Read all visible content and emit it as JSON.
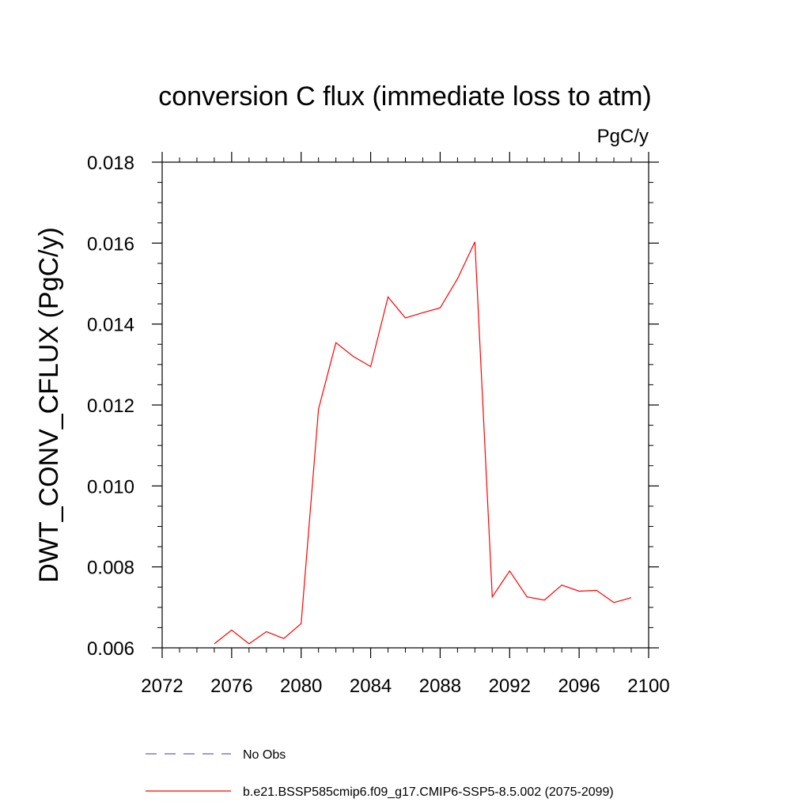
{
  "chart_data": {
    "type": "line",
    "title": "conversion C flux (immediate loss to atm)",
    "units": "PgC/y",
    "ylabel": "DWT_CONV_CFLUX  (PgC/y)",
    "xlabel": "",
    "xlim": [
      2072,
      2100
    ],
    "ylim": [
      0.006,
      0.018
    ],
    "x_ticks": [
      2072,
      2076,
      2080,
      2084,
      2088,
      2092,
      2096,
      2100
    ],
    "x_tick_labels": [
      "2072",
      "2076",
      "2080",
      "2084",
      "2088",
      "2092",
      "2096",
      "2100"
    ],
    "y_ticks": [
      0.006,
      0.008,
      0.01,
      0.012,
      0.014,
      0.016,
      0.018
    ],
    "y_tick_labels": [
      "0.006",
      "0.008",
      "0.010",
      "0.012",
      "0.014",
      "0.016",
      "0.018"
    ],
    "x_minor_step": 1,
    "y_minor_step": 0.0005,
    "grid": false,
    "legend_placement": "bottom",
    "series": [
      {
        "name": "No Obs",
        "color": "#6a5acd",
        "dash": "dashed",
        "x": [],
        "y": []
      },
      {
        "name": "b.e21.BSSP585cmip6.f09_g17.CMIP6-SSP5-8.5.002 (2075-2099)",
        "color": "#ff0000",
        "dash": "solid",
        "x": [
          2075,
          2076,
          2077,
          2078,
          2079,
          2080,
          2081,
          2082,
          2083,
          2084,
          2085,
          2086,
          2087,
          2088,
          2089,
          2090,
          2091,
          2092,
          2093,
          2094,
          2095,
          2096,
          2097,
          2098,
          2099
        ],
        "y": [
          0.0061,
          0.00644,
          0.0061,
          0.0064,
          0.00623,
          0.0066,
          0.0119,
          0.01354,
          0.0132,
          0.01295,
          0.01467,
          0.01415,
          0.01428,
          0.0144,
          0.01512,
          0.01603,
          0.00726,
          0.0079,
          0.00726,
          0.00718,
          0.00755,
          0.0074,
          0.00742,
          0.00712,
          0.00724
        ]
      }
    ]
  }
}
